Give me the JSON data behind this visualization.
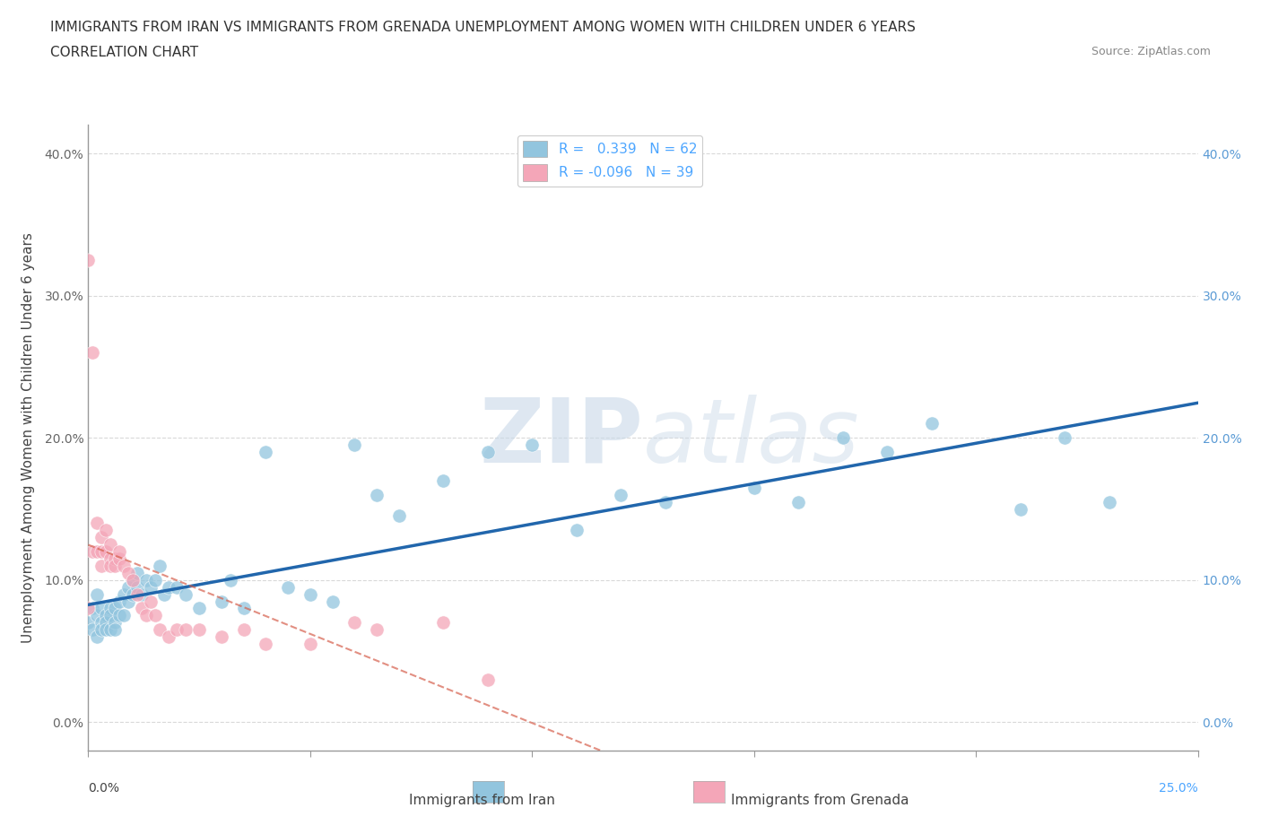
{
  "title_line1": "IMMIGRANTS FROM IRAN VS IMMIGRANTS FROM GRENADA UNEMPLOYMENT AMONG WOMEN WITH CHILDREN UNDER 6 YEARS",
  "title_line2": "CORRELATION CHART",
  "source_text": "Source: ZipAtlas.com",
  "legend_iran": "Immigrants from Iran",
  "legend_grenada": "Immigrants from Grenada",
  "ylabel": "Unemployment Among Women with Children Under 6 years",
  "watermark_zip": "ZIP",
  "watermark_atlas": "atlas",
  "iran_R": 0.339,
  "iran_N": 62,
  "grenada_R": -0.096,
  "grenada_N": 39,
  "iran_color": "#92c5de",
  "grenada_color": "#f4a6b8",
  "iran_line_color": "#2166ac",
  "grenada_line_color": "#d6604d",
  "xmin": 0.0,
  "xmax": 0.25,
  "ymin": -0.02,
  "ymax": 0.42,
  "iran_scatter_x": [
    0.0,
    0.001,
    0.001,
    0.002,
    0.002,
    0.002,
    0.003,
    0.003,
    0.003,
    0.004,
    0.004,
    0.004,
    0.005,
    0.005,
    0.005,
    0.006,
    0.006,
    0.006,
    0.007,
    0.007,
    0.008,
    0.008,
    0.009,
    0.009,
    0.01,
    0.01,
    0.011,
    0.011,
    0.012,
    0.013,
    0.014,
    0.015,
    0.016,
    0.017,
    0.018,
    0.02,
    0.022,
    0.025,
    0.03,
    0.032,
    0.035,
    0.04,
    0.045,
    0.05,
    0.055,
    0.06,
    0.065,
    0.07,
    0.08,
    0.09,
    0.1,
    0.11,
    0.12,
    0.13,
    0.15,
    0.16,
    0.17,
    0.18,
    0.19,
    0.21,
    0.22,
    0.23
  ],
  "iran_scatter_y": [
    0.07,
    0.065,
    0.08,
    0.075,
    0.09,
    0.06,
    0.07,
    0.065,
    0.08,
    0.075,
    0.07,
    0.065,
    0.065,
    0.08,
    0.075,
    0.07,
    0.065,
    0.08,
    0.075,
    0.085,
    0.09,
    0.075,
    0.085,
    0.095,
    0.09,
    0.1,
    0.095,
    0.105,
    0.09,
    0.1,
    0.095,
    0.1,
    0.11,
    0.09,
    0.095,
    0.095,
    0.09,
    0.08,
    0.085,
    0.1,
    0.08,
    0.19,
    0.095,
    0.09,
    0.085,
    0.195,
    0.16,
    0.145,
    0.17,
    0.19,
    0.195,
    0.135,
    0.16,
    0.155,
    0.165,
    0.155,
    0.2,
    0.19,
    0.21,
    0.15,
    0.2,
    0.155
  ],
  "grenada_scatter_x": [
    0.0,
    0.0,
    0.001,
    0.001,
    0.002,
    0.002,
    0.003,
    0.003,
    0.003,
    0.004,
    0.004,
    0.005,
    0.005,
    0.005,
    0.006,
    0.006,
    0.007,
    0.007,
    0.008,
    0.009,
    0.01,
    0.011,
    0.012,
    0.013,
    0.014,
    0.015,
    0.016,
    0.018,
    0.02,
    0.022,
    0.025,
    0.03,
    0.035,
    0.04,
    0.05,
    0.06,
    0.065,
    0.08,
    0.09
  ],
  "grenada_scatter_y": [
    0.325,
    0.08,
    0.26,
    0.12,
    0.14,
    0.12,
    0.13,
    0.12,
    0.11,
    0.135,
    0.12,
    0.125,
    0.115,
    0.11,
    0.115,
    0.11,
    0.115,
    0.12,
    0.11,
    0.105,
    0.1,
    0.09,
    0.08,
    0.075,
    0.085,
    0.075,
    0.065,
    0.06,
    0.065,
    0.065,
    0.065,
    0.06,
    0.065,
    0.055,
    0.055,
    0.07,
    0.065,
    0.07,
    0.03
  ],
  "yticks": [
    0.0,
    0.1,
    0.2,
    0.3,
    0.4
  ],
  "xtick_positions": [
    0.0,
    0.05,
    0.1,
    0.15,
    0.2,
    0.25
  ],
  "background_color": "#ffffff",
  "grid_color": "#d0d0d0",
  "axis_color": "#999999"
}
